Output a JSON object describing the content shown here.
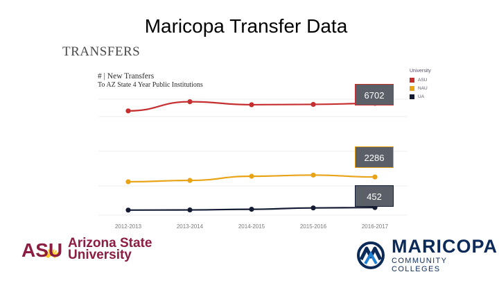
{
  "slide": {
    "title": "Maricopa Transfer Data"
  },
  "section": {
    "heading": "TRANSFERS"
  },
  "chart_data": {
    "type": "line",
    "title": "# | New Transfers",
    "subtitle": "To AZ State 4 Year Public Institutions",
    "xlabel": "",
    "ylabel": "",
    "categories": [
      "2012-2013",
      "2013-2014",
      "2014-2015",
      "2015-2016",
      "2016-2017"
    ],
    "series": [
      {
        "name": "ASU",
        "color": "#c62f2f",
        "values": [
          6250,
          6800,
          6620,
          6640,
          6702
        ]
      },
      {
        "name": "NAU",
        "color": "#e8a317",
        "values": [
          2000,
          2080,
          2330,
          2400,
          2286
        ]
      },
      {
        "name": "UA",
        "color": "#141c33",
        "values": [
          300,
          310,
          350,
          430,
          452
        ]
      }
    ],
    "legend": {
      "title": "University",
      "position": "right"
    },
    "annotations": [
      {
        "series": "ASU",
        "label": "6702",
        "background": "#5a5f68",
        "border": "#c62f2f"
      },
      {
        "series": "NAU",
        "label": "2286",
        "background": "#5a5f68",
        "border": "#e8a317"
      },
      {
        "series": "UA",
        "label": "452",
        "background": "#5a5f68",
        "border": "#141c33"
      }
    ],
    "grid": true
  },
  "logos": {
    "asu": {
      "mark": "ASU",
      "line1": "Arizona State",
      "line2": "University",
      "color": "#8c1d40",
      "accent": "#ffc627"
    },
    "mcc": {
      "name": "MARICOPA",
      "sub": "COMMUNITY COLLEGES",
      "color": "#0b2a57",
      "accent": "#1e7fd6"
    }
  }
}
